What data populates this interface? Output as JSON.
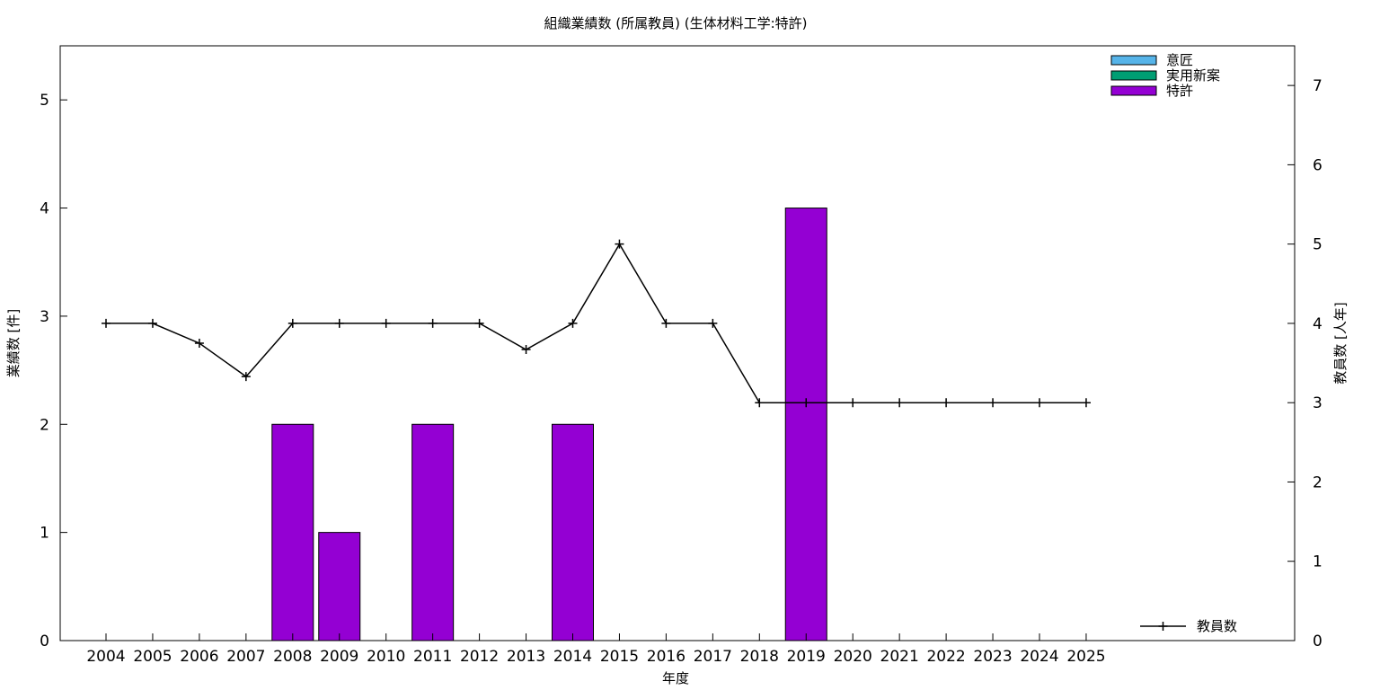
{
  "chart_data": {
    "type": "bar",
    "title": "組織業績数 (所属教員) (生体材料工学:特許)",
    "xlabel": "年度",
    "ylabel_left": "業績数 [件]",
    "ylabel_right": "教員数 [人年]",
    "categories": [
      "2004",
      "2005",
      "2006",
      "2007",
      "2008",
      "2009",
      "2010",
      "2011",
      "2012",
      "2013",
      "2014",
      "2015",
      "2016",
      "2017",
      "2018",
      "2019",
      "2020",
      "2021",
      "2022",
      "2023",
      "2024",
      "2025"
    ],
    "ylim_left": [
      0,
      5.5
    ],
    "yticks_left": [
      0,
      1,
      2,
      3,
      4,
      5
    ],
    "ylim_right": [
      0,
      7.5
    ],
    "yticks_right": [
      0,
      1,
      2,
      3,
      4,
      5,
      6,
      7
    ],
    "grid": false,
    "legend_placement": "top-right",
    "bar_series": [
      {
        "name": "意匠",
        "color": "#56b4e9",
        "values": [
          0,
          0,
          0,
          0,
          0,
          0,
          0,
          0,
          0,
          0,
          0,
          0,
          0,
          0,
          0,
          0,
          0,
          0,
          0,
          0,
          0,
          0
        ]
      },
      {
        "name": "実用新案",
        "color": "#009e73",
        "values": [
          0,
          0,
          0,
          0,
          0,
          0,
          0,
          0,
          0,
          0,
          0,
          0,
          0,
          0,
          0,
          0,
          0,
          0,
          0,
          0,
          0,
          0
        ]
      },
      {
        "name": "特許",
        "color": "#9400d3",
        "values": [
          0,
          0,
          0,
          0,
          2,
          1,
          0,
          2,
          0,
          0,
          2,
          0,
          0,
          0,
          0,
          4,
          0,
          0,
          0,
          0,
          0,
          0
        ]
      }
    ],
    "line_series": [
      {
        "name": "教員数",
        "color": "#000000",
        "axis": "right",
        "legend_placement": "bottom-right",
        "values": [
          4,
          4,
          3.75,
          3.33,
          4,
          4,
          4,
          4,
          4,
          3.67,
          4,
          5,
          4,
          4,
          3,
          3,
          3,
          3,
          3,
          3,
          3,
          3
        ]
      }
    ]
  }
}
